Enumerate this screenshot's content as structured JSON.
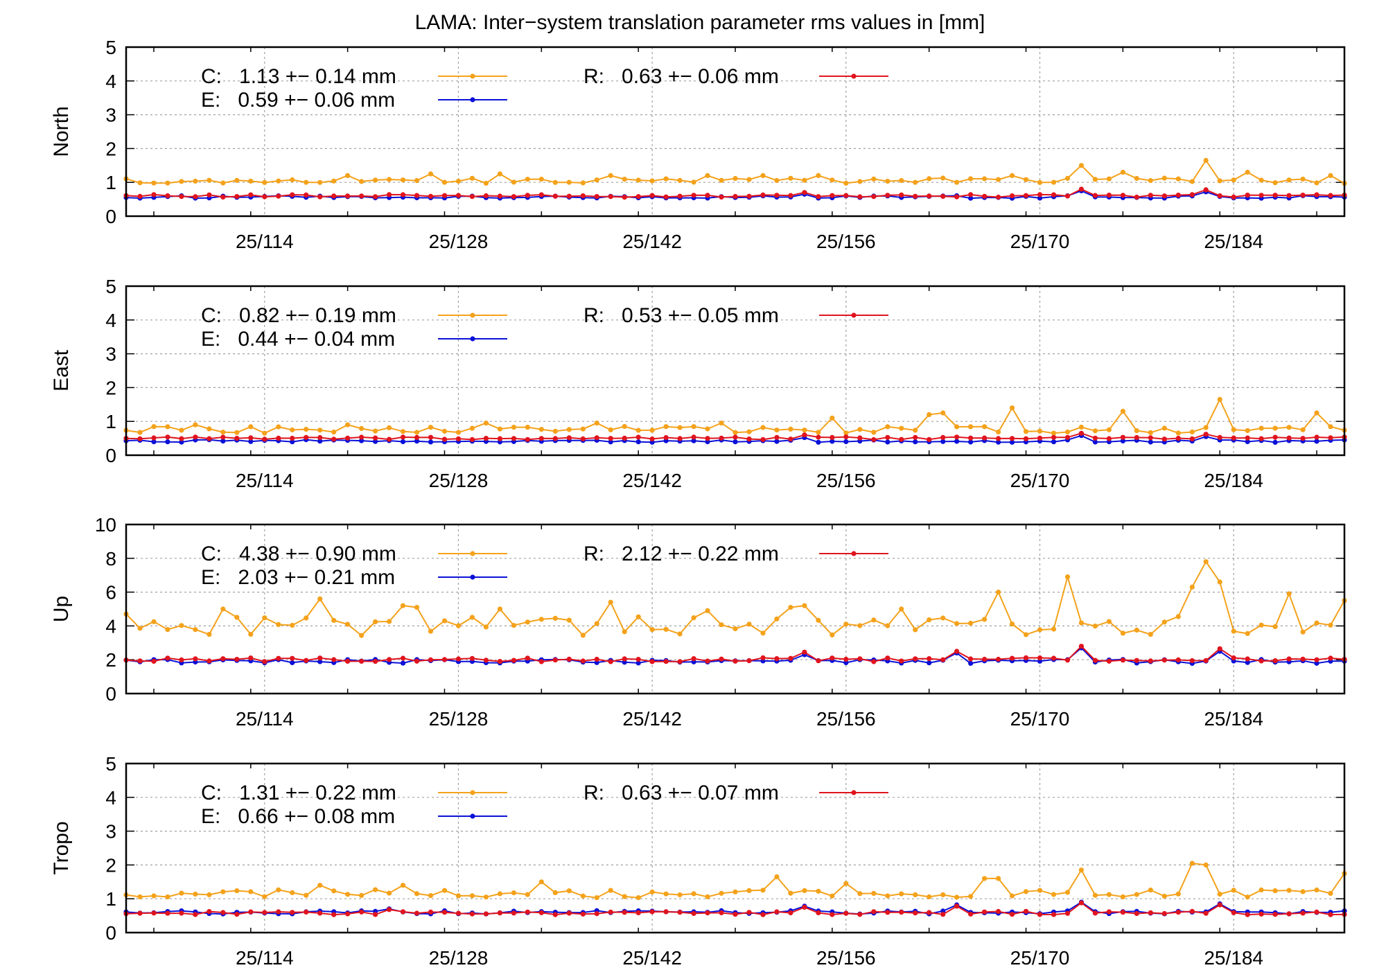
{
  "chart_data": {
    "type": "line",
    "title": "LAMA: Inter−system translation parameter rms values in [mm]",
    "x_start": 104,
    "x_end": 192,
    "x_tick_values": [
      114,
      128,
      142,
      156,
      170,
      184
    ],
    "x_tick_labels": [
      "25/114",
      "25/128",
      "25/142",
      "25/156",
      "25/170",
      "25/184"
    ],
    "grid": true,
    "colors": {
      "C": "#f4a21b",
      "E": "#0a10d8",
      "R": "#e0141e"
    },
    "panels": [
      {
        "ylabel": "North",
        "ylim": [
          0,
          5
        ],
        "yticks": [
          0,
          1,
          2,
          3,
          4,
          5
        ],
        "legend": {
          "C": "C:   1.13 +− 0.14 mm",
          "E": "E:   0.59 +− 0.06 mm",
          "R": "R:   0.63 +− 0.06 mm"
        },
        "series": [
          {
            "name": "C",
            "base": 1.05,
            "amp": 0.08,
            "spikes": [
              [
                120,
                1.2
              ],
              [
                126,
                1.25
              ],
              [
                131,
                1.25
              ],
              [
                139,
                1.2
              ],
              [
                146,
                1.2
              ],
              [
                150,
                1.2
              ],
              [
                154,
                1.2
              ],
              [
                168,
                1.2
              ],
              [
                173,
                1.5
              ],
              [
                176,
                1.3
              ],
              [
                182,
                1.65
              ],
              [
                185,
                1.3
              ],
              [
                191,
                1.2
              ]
            ]
          },
          {
            "name": "E",
            "base": 0.57,
            "amp": 0.04,
            "spikes": [
              [
                153,
                0.65
              ],
              [
                173,
                0.75
              ],
              [
                182,
                0.72
              ]
            ]
          },
          {
            "name": "R",
            "base": 0.6,
            "amp": 0.04,
            "spikes": [
              [
                153,
                0.7
              ],
              [
                173,
                0.8
              ],
              [
                182,
                0.78
              ]
            ]
          }
        ]
      },
      {
        "ylabel": "East",
        "ylim": [
          0,
          5
        ],
        "yticks": [
          0,
          1,
          2,
          3,
          4,
          5
        ],
        "legend": {
          "C": "C:   0.82 +− 0.19 mm",
          "E": "E:   0.44 +− 0.04 mm",
          "R": "R:   0.53 +− 0.05 mm"
        },
        "series": [
          {
            "name": "C",
            "base": 0.75,
            "amp": 0.1,
            "spikes": [
              [
                109,
                0.9
              ],
              [
                120,
                0.9
              ],
              [
                130,
                0.95
              ],
              [
                138,
                0.95
              ],
              [
                147,
                0.95
              ],
              [
                155,
                1.1
              ],
              [
                162,
                1.2
              ],
              [
                163,
                1.25
              ],
              [
                168,
                1.4
              ],
              [
                176,
                1.3
              ],
              [
                183,
                1.65
              ],
              [
                190,
                1.25
              ]
            ]
          },
          {
            "name": "E",
            "base": 0.42,
            "amp": 0.04,
            "spikes": [
              [
                153,
                0.52
              ],
              [
                173,
                0.58
              ],
              [
                182,
                0.55
              ]
            ]
          },
          {
            "name": "R",
            "base": 0.5,
            "amp": 0.04,
            "spikes": [
              [
                153,
                0.6
              ],
              [
                173,
                0.65
              ],
              [
                182,
                0.62
              ]
            ]
          }
        ]
      },
      {
        "ylabel": "Up",
        "ylim": [
          0,
          10
        ],
        "yticks": [
          0,
          2,
          4,
          6,
          8,
          10
        ],
        "legend": {
          "C": "C:   4.38 +− 0.90 mm",
          "E": "E:   2.03 +− 0.21 mm",
          "R": "R:   2.12 +− 0.22 mm"
        },
        "series": [
          {
            "name": "C",
            "base": 4.0,
            "amp": 0.6,
            "spikes": [
              [
                104,
                4.7
              ],
              [
                111,
                5.0
              ],
              [
                118,
                5.6
              ],
              [
                124,
                5.2
              ],
              [
                125,
                5.1
              ],
              [
                131,
                5.0
              ],
              [
                139,
                5.4
              ],
              [
                146,
                4.9
              ],
              [
                152,
                5.1
              ],
              [
                153,
                5.2
              ],
              [
                160,
                5.0
              ],
              [
                167,
                6.0
              ],
              [
                172,
                6.9
              ],
              [
                178,
                3.5
              ],
              [
                181,
                6.3
              ],
              [
                182,
                7.8
              ],
              [
                183,
                6.6
              ],
              [
                188,
                5.9
              ],
              [
                192,
                5.5
              ]
            ]
          },
          {
            "name": "E",
            "base": 1.9,
            "amp": 0.12,
            "spikes": [
              [
                153,
                2.3
              ],
              [
                164,
                2.4
              ],
              [
                173,
                2.7
              ],
              [
                183,
                2.5
              ]
            ]
          },
          {
            "name": "R",
            "base": 2.0,
            "amp": 0.12,
            "spikes": [
              [
                153,
                2.45
              ],
              [
                164,
                2.5
              ],
              [
                173,
                2.8
              ],
              [
                183,
                2.65
              ]
            ]
          }
        ]
      },
      {
        "ylabel": "Tropo",
        "ylim": [
          0,
          5
        ],
        "yticks": [
          0,
          1,
          2,
          3,
          4,
          5
        ],
        "legend": {
          "C": "C:   1.31 +− 0.22 mm",
          "E": "E:   0.66 +− 0.08 mm",
          "R": "R:   0.63 +− 0.07 mm"
        },
        "series": [
          {
            "name": "C",
            "base": 1.15,
            "amp": 0.12,
            "spikes": [
              [
                118,
                1.4
              ],
              [
                124,
                1.4
              ],
              [
                134,
                1.5
              ],
              [
                151,
                1.65
              ],
              [
                156,
                1.45
              ],
              [
                166,
                1.6
              ],
              [
                167,
                1.6
              ],
              [
                173,
                1.85
              ],
              [
                181,
                2.05
              ],
              [
                182,
                2.0
              ],
              [
                192,
                1.75
              ]
            ]
          },
          {
            "name": "E",
            "base": 0.6,
            "amp": 0.05,
            "spikes": [
              [
                123,
                0.7
              ],
              [
                153,
                0.78
              ],
              [
                164,
                0.82
              ],
              [
                173,
                0.9
              ],
              [
                183,
                0.85
              ]
            ]
          },
          {
            "name": "R",
            "base": 0.58,
            "amp": 0.05,
            "spikes": [
              [
                123,
                0.68
              ],
              [
                153,
                0.75
              ],
              [
                164,
                0.78
              ],
              [
                173,
                0.88
              ],
              [
                183,
                0.82
              ]
            ]
          }
        ]
      }
    ]
  }
}
